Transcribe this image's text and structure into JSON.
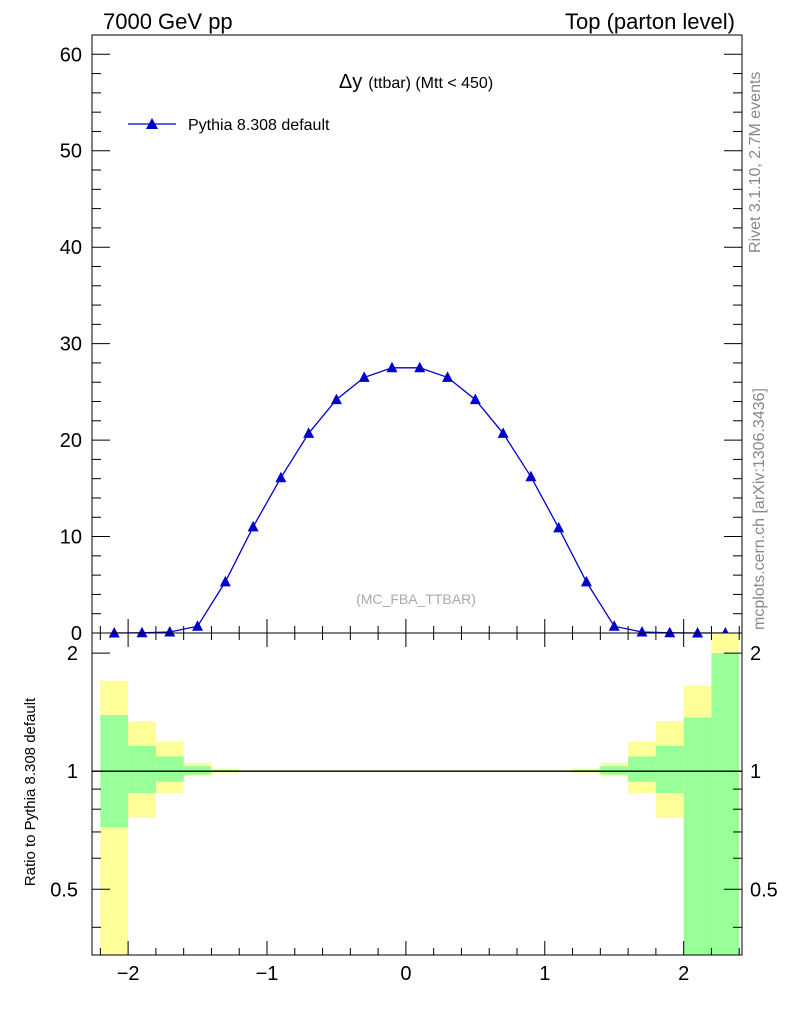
{
  "header": {
    "left": "7000 GeV pp",
    "right": "Top (parton level)"
  },
  "side": {
    "rivet": "Rivet 3.1.10,  2.7M events",
    "site": "mcplots.cern.ch [arXiv:1306.3436]"
  },
  "watermark": "(MC_FBA_TTBAR)",
  "chart_data": {
    "type": "line",
    "title_symbol": "Δy",
    "title_rest": "(ttbar) (Mtt < 450)",
    "legend": [
      {
        "label": "Pythia 8.308 default",
        "color": "#0000cc",
        "marker": "triangle"
      }
    ],
    "xlim": [
      -2.26,
      2.42
    ],
    "ylim": [
      0,
      62
    ],
    "yticks": [
      0,
      10,
      20,
      30,
      40,
      50,
      60
    ],
    "xticks": [
      -2,
      -1,
      0,
      1,
      2
    ],
    "x_tick_labels": [
      "−2",
      "−1",
      "0",
      "1",
      "2"
    ],
    "series": [
      {
        "name": "Pythia 8.308 default",
        "x": [
          -2.1,
          -1.9,
          -1.7,
          -1.5,
          -1.3,
          -1.1,
          -0.9,
          -0.7,
          -0.5,
          -0.3,
          -0.1,
          0.1,
          0.3,
          0.5,
          0.7,
          0.9,
          1.1,
          1.3,
          1.5,
          1.7,
          1.9,
          2.1,
          2.3
        ],
        "y": [
          0.0,
          0.02,
          0.1,
          0.7,
          5.3,
          11.0,
          16.1,
          20.7,
          24.2,
          26.5,
          27.5,
          27.5,
          26.5,
          24.2,
          20.7,
          16.2,
          10.9,
          5.3,
          0.7,
          0.1,
          0.02,
          0.0,
          0.0
        ]
      }
    ],
    "ratio": {
      "ylabel": "Ratio to Pythia 8.308 default",
      "ylim": [
        0.34,
        2.25
      ],
      "log": true,
      "yticks": [
        0.5,
        1,
        2
      ],
      "ytick_labels": [
        "0.5",
        "1",
        "2"
      ],
      "bins": [
        {
          "lo": -2.2,
          "hi": -2.0,
          "yellow": [
            0.3,
            1.7
          ],
          "green": [
            0.72,
            1.39
          ]
        },
        {
          "lo": -2.0,
          "hi": -1.8,
          "yellow": [
            0.76,
            1.34
          ],
          "green": [
            0.88,
            1.16
          ]
        },
        {
          "lo": -1.8,
          "hi": -1.6,
          "yellow": [
            0.88,
            1.19
          ],
          "green": [
            0.94,
            1.09
          ]
        },
        {
          "lo": -1.6,
          "hi": -1.4,
          "yellow": [
            0.97,
            1.05
          ],
          "green": [
            0.98,
            1.03
          ]
        },
        {
          "lo": -1.4,
          "hi": -1.2,
          "yellow": [
            0.99,
            1.015
          ],
          "green": [
            0.995,
            1.008
          ]
        },
        {
          "lo": -1.2,
          "hi": 1.2,
          "yellow": [
            0.995,
            1.008
          ],
          "green": [
            0.997,
            1.004
          ]
        },
        {
          "lo": 1.2,
          "hi": 1.4,
          "yellow": [
            0.99,
            1.015
          ],
          "green": [
            0.995,
            1.008
          ]
        },
        {
          "lo": 1.4,
          "hi": 1.6,
          "yellow": [
            0.97,
            1.05
          ],
          "green": [
            0.98,
            1.03
          ]
        },
        {
          "lo": 1.6,
          "hi": 1.8,
          "yellow": [
            0.88,
            1.19
          ],
          "green": [
            0.94,
            1.09
          ]
        },
        {
          "lo": 1.8,
          "hi": 2.0,
          "yellow": [
            0.76,
            1.34
          ],
          "green": [
            0.88,
            1.16
          ]
        },
        {
          "lo": 2.0,
          "hi": 2.2,
          "yellow": [
            0.2,
            1.65
          ],
          "green": [
            0.2,
            1.37
          ]
        },
        {
          "lo": 2.2,
          "hi": 2.4,
          "yellow": [
            0.3,
            3.0
          ],
          "green": [
            0.3,
            2.0
          ]
        }
      ]
    },
    "colors": {
      "line": "#0000cc",
      "yellow": "#ffff99",
      "green": "#99ff99",
      "refline": "#000000"
    }
  }
}
